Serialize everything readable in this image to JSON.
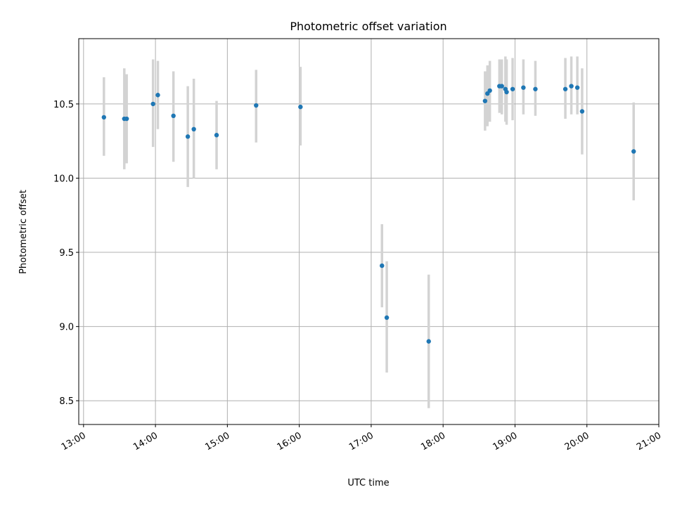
{
  "chart_data": {
    "type": "scatter",
    "title": "Photometric offset variation",
    "xlabel": "UTC time",
    "ylabel": "Photometric offset",
    "xlim": [
      "12:56",
      "21:00"
    ],
    "ylim": [
      8.34,
      10.94
    ],
    "xticks": [
      "13:00",
      "14:00",
      "15:00",
      "16:00",
      "17:00",
      "18:00",
      "19:00",
      "20:00",
      "21:00"
    ],
    "yticks": [
      8.5,
      9.0,
      9.5,
      10.0,
      10.5
    ],
    "ytick_labels": [
      "8.5",
      "9.0",
      "9.5",
      "10.0",
      "10.5"
    ],
    "grid": true,
    "colors": {
      "marker": "#1f77b4",
      "errorbar": "#d3d3d3",
      "grid": "#b0b0b0"
    },
    "points": [
      {
        "t": "13:17",
        "y": 10.41,
        "lo": 10.15,
        "hi": 10.68
      },
      {
        "t": "13:34",
        "y": 10.4,
        "lo": 10.06,
        "hi": 10.74
      },
      {
        "t": "13:36",
        "y": 10.4,
        "lo": 10.1,
        "hi": 10.7
      },
      {
        "t": "13:58",
        "y": 10.5,
        "lo": 10.21,
        "hi": 10.8
      },
      {
        "t": "14:02",
        "y": 10.56,
        "lo": 10.33,
        "hi": 10.79
      },
      {
        "t": "14:15",
        "y": 10.42,
        "lo": 10.11,
        "hi": 10.72
      },
      {
        "t": "14:27",
        "y": 10.28,
        "lo": 9.94,
        "hi": 10.62
      },
      {
        "t": "14:32",
        "y": 10.33,
        "lo": 10.0,
        "hi": 10.67
      },
      {
        "t": "14:51",
        "y": 10.29,
        "lo": 10.06,
        "hi": 10.52
      },
      {
        "t": "15:24",
        "y": 10.49,
        "lo": 10.24,
        "hi": 10.73
      },
      {
        "t": "16:01",
        "y": 10.48,
        "lo": 10.22,
        "hi": 10.75
      },
      {
        "t": "17:09",
        "y": 9.41,
        "lo": 9.13,
        "hi": 9.69
      },
      {
        "t": "17:13",
        "y": 9.06,
        "lo": 8.69,
        "hi": 9.44
      },
      {
        "t": "17:48",
        "y": 8.9,
        "lo": 8.45,
        "hi": 9.35
      },
      {
        "t": "18:35",
        "y": 10.52,
        "lo": 10.32,
        "hi": 10.72
      },
      {
        "t": "18:37",
        "y": 10.57,
        "lo": 10.35,
        "hi": 10.76
      },
      {
        "t": "18:39",
        "y": 10.59,
        "lo": 10.38,
        "hi": 10.79
      },
      {
        "t": "18:47",
        "y": 10.62,
        "lo": 10.44,
        "hi": 10.8
      },
      {
        "t": "18:49",
        "y": 10.62,
        "lo": 10.43,
        "hi": 10.8
      },
      {
        "t": "18:52",
        "y": 10.6,
        "lo": 10.38,
        "hi": 10.82
      },
      {
        "t": "18:53",
        "y": 10.58,
        "lo": 10.36,
        "hi": 10.8
      },
      {
        "t": "18:58",
        "y": 10.6,
        "lo": 10.39,
        "hi": 10.81
      },
      {
        "t": "19:07",
        "y": 10.61,
        "lo": 10.43,
        "hi": 10.8
      },
      {
        "t": "19:17",
        "y": 10.6,
        "lo": 10.42,
        "hi": 10.79
      },
      {
        "t": "19:42",
        "y": 10.6,
        "lo": 10.4,
        "hi": 10.81
      },
      {
        "t": "19:47",
        "y": 10.62,
        "lo": 10.43,
        "hi": 10.82
      },
      {
        "t": "19:52",
        "y": 10.61,
        "lo": 10.43,
        "hi": 10.82
      },
      {
        "t": "19:56",
        "y": 10.45,
        "lo": 10.16,
        "hi": 10.74
      },
      {
        "t": "20:39",
        "y": 10.18,
        "lo": 9.85,
        "hi": 10.51
      }
    ]
  }
}
